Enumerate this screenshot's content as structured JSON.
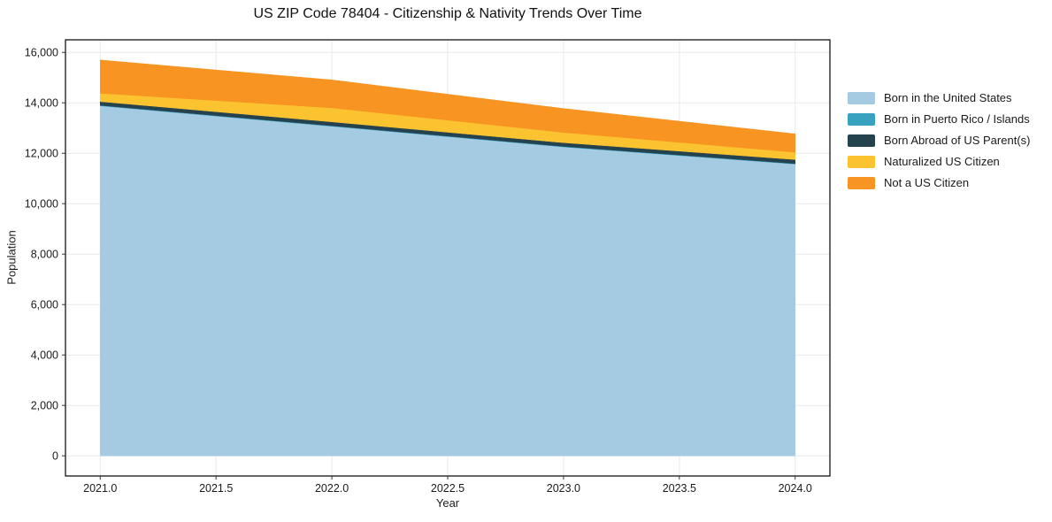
{
  "chart_data": {
    "type": "area",
    "stacked": true,
    "title": "US ZIP Code 78404 - Citizenship & Nativity Trends Over Time",
    "xlabel": "Year",
    "ylabel": "Population",
    "x": [
      2021,
      2022,
      2023,
      2024
    ],
    "series": [
      {
        "name": "Born in the United States",
        "color": "#a5cbe2",
        "values": [
          13880,
          13070,
          12250,
          11570
        ]
      },
      {
        "name": "Born in Puerto Rico / Islands",
        "color": "#3aa2c1",
        "values": [
          20,
          20,
          20,
          20
        ]
      },
      {
        "name": "Born Abroad of US Parent(s)",
        "color": "#25424f",
        "values": [
          150,
          155,
          150,
          160
        ]
      },
      {
        "name": "Naturalized US Citizen",
        "color": "#fcc330",
        "values": [
          330,
          555,
          405,
          290
        ]
      },
      {
        "name": "Not a US Citizen",
        "color": "#f79422",
        "values": [
          1320,
          1110,
          950,
          730
        ]
      }
    ],
    "stacked_totals": [
      15700,
      14910,
      13775,
      12770
    ],
    "xlim": [
      2020.85,
      2024.15
    ],
    "ylim": [
      -800,
      16500
    ],
    "xticks": {
      "values": [
        2021.0,
        2021.5,
        2022.0,
        2022.5,
        2023.0,
        2023.5,
        2024.0
      ],
      "labels": [
        "2021.0",
        "2021.5",
        "2022.0",
        "2022.5",
        "2023.0",
        "2023.5",
        "2024.0"
      ]
    },
    "yticks": {
      "values": [
        0,
        2000,
        4000,
        6000,
        8000,
        10000,
        12000,
        14000,
        16000
      ],
      "labels": [
        "0",
        "2,000",
        "4,000",
        "6,000",
        "8,000",
        "10,000",
        "12,000",
        "14,000",
        "16,000"
      ]
    },
    "grid": true,
    "legend_position": "right-outside"
  },
  "colors": {
    "background": "#ffffff",
    "grid": "#e9e9e9",
    "spine": "#000000",
    "tick": "#333333",
    "text": "#1a1a1a"
  }
}
